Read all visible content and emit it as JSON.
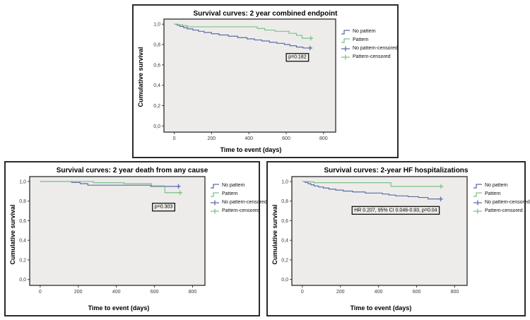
{
  "page": {
    "background": "#ffffff"
  },
  "style": {
    "no_pattern_color": "#5c6ca4",
    "pattern_color": "#7cc189",
    "plot_background": "#edecea",
    "plot_border_color": "#3a3a3a",
    "panel_border_color": "#2b2b2b",
    "axis_color": "#3a3a3a",
    "tick_label_color": "#3a3a3a",
    "annotation_border_color": "#000000"
  },
  "chart_data": [
    {
      "type": "line",
      "subtype": "kaplan-meier-step",
      "title": "Survival curves: 2 year combined endpoint",
      "xlabel": "Time to event (days)",
      "ylabel": "Cumulative survival",
      "xlim": [
        -55,
        865
      ],
      "ylim": [
        -0.06,
        1.05
      ],
      "x_tick_values": [
        0,
        200,
        400,
        600,
        800
      ],
      "x_tick_labels": [
        "0",
        "200",
        "400",
        "600",
        "800"
      ],
      "y_tick_values": [
        1.0,
        0.8,
        0.6,
        0.4,
        0.2,
        0.0
      ],
      "y_tick_labels": [
        "1,0",
        "0,8",
        "0,6",
        "0,4",
        "0,2",
        "0,0"
      ],
      "grid": false,
      "legend_position": "right",
      "annotation": {
        "text": "p=0.182",
        "x": 660,
        "y": 0.68
      },
      "series": [
        {
          "name": "No pattern",
          "color_key": "no_pattern",
          "points": [
            [
              0,
              1.0
            ],
            [
              15,
              0.99
            ],
            [
              30,
              0.978
            ],
            [
              50,
              0.966
            ],
            [
              70,
              0.954
            ],
            [
              100,
              0.942
            ],
            [
              130,
              0.93
            ],
            [
              160,
              0.918
            ],
            [
              200,
              0.906
            ],
            [
              240,
              0.894
            ],
            [
              290,
              0.882
            ],
            [
              340,
              0.868
            ],
            [
              390,
              0.856
            ],
            [
              430,
              0.845
            ],
            [
              470,
              0.835
            ],
            [
              510,
              0.822
            ],
            [
              550,
              0.812
            ],
            [
              590,
              0.8
            ],
            [
              620,
              0.788
            ],
            [
              655,
              0.775
            ],
            [
              690,
              0.766
            ],
            [
              738,
              0.766
            ]
          ],
          "censors": [
            [
              728,
              0.766
            ]
          ]
        },
        {
          "name": "Pattern",
          "color_key": "pattern",
          "points": [
            [
              0,
              1.0
            ],
            [
              20,
              0.994
            ],
            [
              45,
              0.985
            ],
            [
              70,
              0.974
            ],
            [
              445,
              0.958
            ],
            [
              485,
              0.942
            ],
            [
              540,
              0.93
            ],
            [
              615,
              0.91
            ],
            [
              655,
              0.89
            ],
            [
              685,
              0.862
            ],
            [
              742,
              0.862
            ]
          ],
          "censors": [
            [
              732,
              0.862
            ]
          ]
        }
      ],
      "legend_entries": [
        {
          "label": "No pattern",
          "color_key": "no_pattern",
          "glyph": "step"
        },
        {
          "label": "Pattern",
          "color_key": "pattern",
          "glyph": "step"
        },
        {
          "label": "No pattern-censored",
          "color_key": "no_pattern",
          "glyph": "censor"
        },
        {
          "label": "Pattern-censored",
          "color_key": "pattern",
          "glyph": "censor"
        }
      ]
    },
    {
      "type": "line",
      "subtype": "kaplan-meier-step",
      "title": "Survival curves: 2 year death from any cause",
      "xlabel": "Time to event (days)",
      "ylabel": "Cumulative survival",
      "xlim": [
        -55,
        865
      ],
      "ylim": [
        -0.06,
        1.05
      ],
      "x_tick_values": [
        0,
        200,
        400,
        600,
        800
      ],
      "x_tick_labels": [
        "0",
        "200",
        "400",
        "600",
        "800"
      ],
      "y_tick_values": [
        1.0,
        0.8,
        0.6,
        0.4,
        0.2,
        0.0
      ],
      "y_tick_labels": [
        "1,0",
        "0,8",
        "0,6",
        "0,4",
        "0,2",
        "0,0"
      ],
      "grid": false,
      "legend_position": "right",
      "annotation": {
        "text": "p=0.303",
        "x": 648,
        "y": 0.745
      },
      "series": [
        {
          "name": "No pattern",
          "color_key": "no_pattern",
          "points": [
            [
              0,
              1.0
            ],
            [
              165,
              0.99
            ],
            [
              210,
              0.978
            ],
            [
              250,
              0.962
            ],
            [
              580,
              0.95
            ],
            [
              735,
              0.95
            ]
          ],
          "censors": [
            [
              726,
              0.95
            ]
          ]
        },
        {
          "name": "Pattern",
          "color_key": "pattern",
          "points": [
            [
              0,
              1.0
            ],
            [
              280,
              0.988
            ],
            [
              440,
              0.978
            ],
            [
              585,
              0.956
            ],
            [
              655,
              0.886
            ],
            [
              742,
              0.886
            ]
          ],
          "censors": [
            [
              734,
              0.886
            ]
          ]
        }
      ],
      "legend_entries": [
        {
          "label": "No pattern",
          "color_key": "no_pattern",
          "glyph": "step"
        },
        {
          "label": "Pattern",
          "color_key": "pattern",
          "glyph": "step"
        },
        {
          "label": "No pattern-censored",
          "color_key": "no_pattern",
          "glyph": "censor"
        },
        {
          "label": "Pattern-censored",
          "color_key": "pattern",
          "glyph": "censor"
        }
      ]
    },
    {
      "type": "line",
      "subtype": "kaplan-meier-step",
      "title": "Survival curves: 2-year HF hospitalizations",
      "xlabel": "Time to event (days)",
      "ylabel": "Cumulative survival",
      "xlim": [
        -55,
        865
      ],
      "ylim": [
        -0.06,
        1.05
      ],
      "x_tick_values": [
        0,
        200,
        400,
        600,
        800
      ],
      "x_tick_labels": [
        "0",
        "200",
        "400",
        "600",
        "800"
      ],
      "y_tick_values": [
        1.0,
        0.8,
        0.6,
        0.4,
        0.2,
        0.0
      ],
      "y_tick_labels": [
        "1,0",
        "0,8",
        "0,6",
        "0,4",
        "0,2",
        "0,0"
      ],
      "grid": false,
      "legend_position": "right",
      "annotation": {
        "text": "HR 0.207, 95% CI 0.046-0.93, p=0.04",
        "x": 490,
        "y": 0.712
      },
      "series": [
        {
          "name": "No pattern",
          "color_key": "no_pattern",
          "points": [
            [
              0,
              1.0
            ],
            [
              14,
              0.99
            ],
            [
              30,
              0.978
            ],
            [
              45,
              0.966
            ],
            [
              62,
              0.954
            ],
            [
              85,
              0.944
            ],
            [
              110,
              0.934
            ],
            [
              140,
              0.922
            ],
            [
              175,
              0.912
            ],
            [
              215,
              0.902
            ],
            [
              265,
              0.893
            ],
            [
              330,
              0.882
            ],
            [
              420,
              0.872
            ],
            [
              455,
              0.862
            ],
            [
              490,
              0.853
            ],
            [
              555,
              0.845
            ],
            [
              610,
              0.837
            ],
            [
              660,
              0.822
            ],
            [
              735,
              0.822
            ]
          ],
          "censors": [
            [
              726,
              0.822
            ]
          ]
        },
        {
          "name": "Pattern",
          "color_key": "pattern",
          "points": [
            [
              0,
              1.0
            ],
            [
              40,
              0.996
            ],
            [
              60,
              0.988
            ],
            [
              465,
              0.95
            ],
            [
              740,
              0.95
            ]
          ],
          "censors": [
            [
              728,
              0.95
            ]
          ]
        }
      ],
      "legend_entries": [
        {
          "label": "No pattern",
          "color_key": "no_pattern",
          "glyph": "step"
        },
        {
          "label": "Pattern",
          "color_key": "pattern",
          "glyph": "step"
        },
        {
          "label": "No pattern-censored",
          "color_key": "no_pattern",
          "glyph": "censor"
        },
        {
          "label": "Pattern-censored",
          "color_key": "pattern",
          "glyph": "censor"
        }
      ]
    }
  ]
}
